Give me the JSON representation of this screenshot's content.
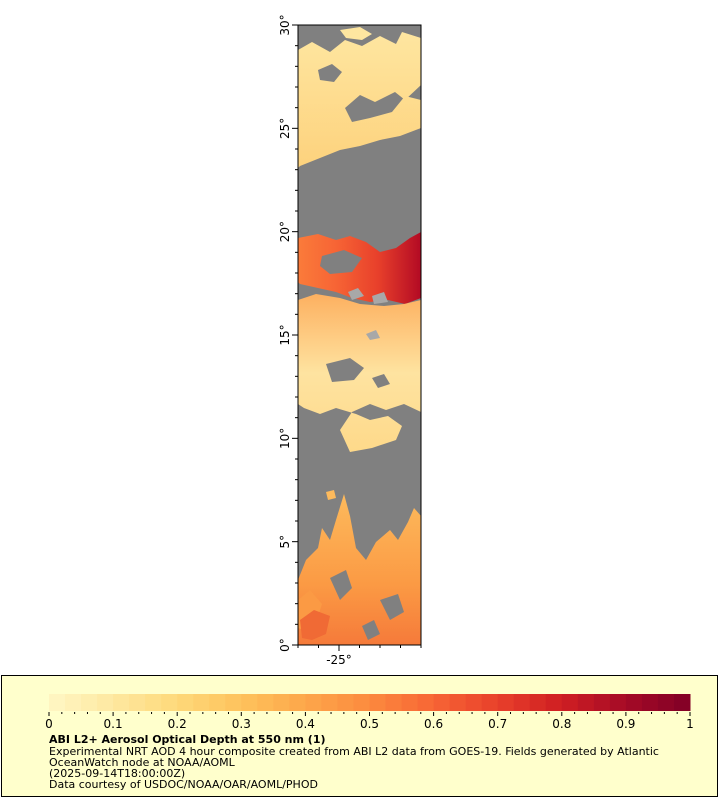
{
  "map": {
    "lat_range": [
      0,
      30
    ],
    "lon_range": [
      -27,
      -21
    ],
    "lat_labels": [
      "0°",
      "5°",
      "10°",
      "15°",
      "20°",
      "25°",
      "30°"
    ],
    "lon_labels": [
      "-25°"
    ],
    "no_data_color": "#808080"
  },
  "legend": {
    "title": "ABI L2+ Aerosol Optical Depth at 550 nm (1)",
    "description_line1": "Experimental NRT AOD 4 hour composite created from ABI L2 data from GOES-19. Fields generated by Atlantic",
    "description_line2": "OceanWatch node at NOAA/AOML",
    "timestamp": "(2025-09-14T18:00:00Z)",
    "credit": "Data courtesy of USDOC/NOAA/OAR/AOML/PHOD",
    "scale_min": 0,
    "scale_max": 1,
    "ticks": [
      "0",
      "0.1",
      "0.2",
      "0.3",
      "0.4",
      "0.5",
      "0.6",
      "0.7",
      "0.8",
      "0.9",
      "1"
    ],
    "colors": [
      "#fff7c4",
      "#fee8a0",
      "#fed97a",
      "#fec25c",
      "#fda64a",
      "#fc8a3e",
      "#f76535",
      "#e8402b",
      "#cf1e22",
      "#a50a26",
      "#800026"
    ]
  }
}
